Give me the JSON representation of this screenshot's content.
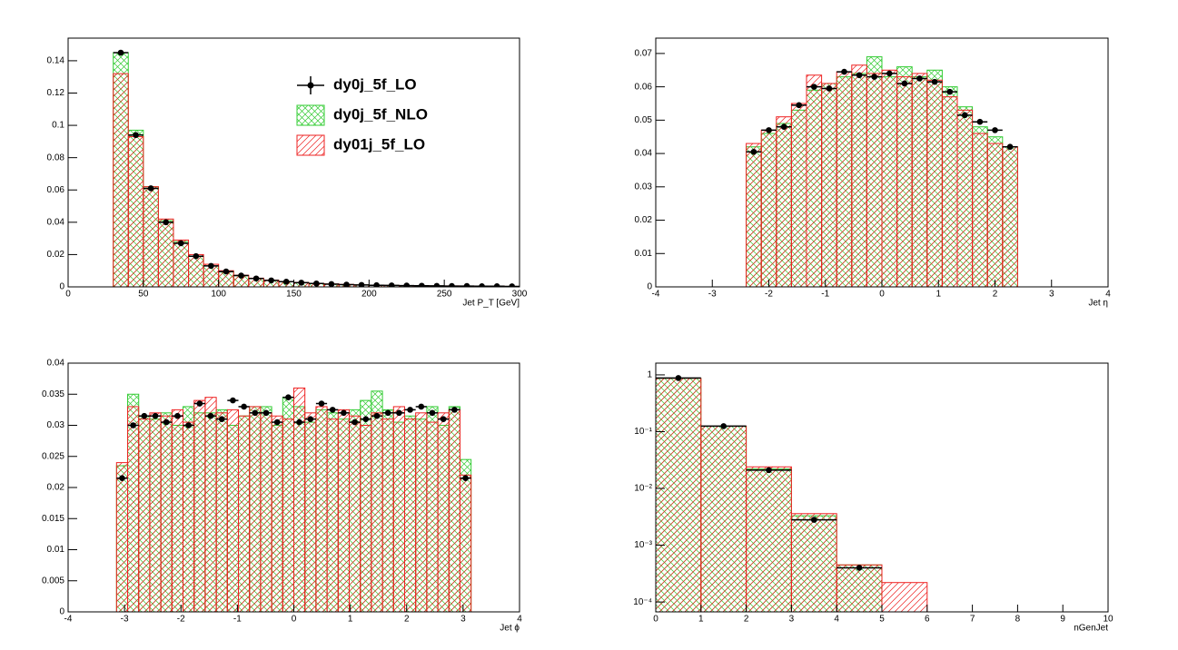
{
  "chart_data": [
    {
      "type": "histogram",
      "xlabel": "Jet P_T [GeV]",
      "legend": "top-right",
      "bins": [
        30,
        40,
        50,
        60,
        70,
        80,
        90,
        100,
        110,
        120,
        130,
        140,
        150,
        160,
        170,
        180,
        190,
        200,
        210,
        220,
        230,
        240,
        250,
        260,
        270,
        280,
        290,
        300
      ],
      "series": [
        {
          "name": "dy0j_5f_NLO",
          "style": "hatch-cross",
          "color": "#33cc33",
          "values": [
            0.145,
            0.097,
            0.062,
            0.041,
            0.028,
            0.019,
            0.013,
            0.0093,
            0.0069,
            0.0052,
            0.0041,
            0.0032,
            0.0026,
            0.0021,
            0.0017,
            0.0014,
            0.0012,
            0.001,
            0.0009,
            0.0008,
            0.0007,
            0.0006,
            0.0005,
            0.0005,
            0.0004,
            0.0004,
            0.0003
          ]
        },
        {
          "name": "dy01j_5f_LO",
          "style": "hatch-diagonal",
          "color": "#ee2222",
          "values": [
            0.132,
            0.093,
            0.062,
            0.042,
            0.029,
            0.02,
            0.014,
            0.01,
            0.0072,
            0.0054,
            0.0042,
            0.0033,
            0.0027,
            0.0022,
            0.0018,
            0.0015,
            0.0012,
            0.0011,
            0.0009,
            0.0008,
            0.0007,
            0.0006,
            0.0006,
            0.0005,
            0.0004,
            0.0004,
            0.0003
          ]
        },
        {
          "name": "dy0j_5f_LO",
          "style": "markers",
          "color": "#000000",
          "values": [
            0.145,
            0.094,
            0.061,
            0.04,
            0.027,
            0.019,
            0.013,
            0.0095,
            0.007,
            0.0052,
            0.004,
            0.0032,
            0.0026,
            0.0021,
            0.0017,
            0.0014,
            0.0012,
            0.001,
            0.0009,
            0.0008,
            0.0007,
            0.0006,
            0.0005,
            0.0005,
            0.0004,
            0.0004,
            0.0003
          ]
        }
      ],
      "xlim": [
        0,
        300
      ],
      "xticks": [
        0,
        50,
        100,
        150,
        200,
        250,
        300
      ],
      "ylim": [
        0,
        0.154
      ],
      "yticks": [
        0,
        0.02,
        0.04,
        0.06,
        0.08,
        0.1,
        0.12,
        0.14
      ],
      "log_y": false
    },
    {
      "type": "histogram",
      "xlabel": "Jet η",
      "bins": [
        -2.4,
        -2.1333,
        -1.8667,
        -1.6,
        -1.3333,
        -1.0667,
        -0.8,
        -0.5333,
        -0.2667,
        0,
        0.2667,
        0.5333,
        0.8,
        1.0667,
        1.3333,
        1.6,
        1.8667,
        2.1333,
        2.4
      ],
      "series": [
        {
          "name": "dy0j_5f_NLO",
          "style": "hatch-cross",
          "color": "#33cc33",
          "values": [
            0.042,
            0.046,
            0.049,
            0.053,
            0.059,
            0.061,
            0.063,
            0.064,
            0.069,
            0.063,
            0.066,
            0.063,
            0.065,
            0.06,
            0.054,
            0.048,
            0.045,
            0.042
          ]
        },
        {
          "name": "dy01j_5f_LO",
          "style": "hatch-diagonal",
          "color": "#ee2222",
          "values": [
            0.043,
            0.047,
            0.051,
            0.055,
            0.0635,
            0.061,
            0.0645,
            0.0665,
            0.064,
            0.065,
            0.063,
            0.064,
            0.062,
            0.057,
            0.053,
            0.046,
            0.043,
            0.042
          ]
        },
        {
          "name": "dy0j_5f_LO",
          "style": "markers",
          "color": "#000000",
          "values": [
            0.0405,
            0.047,
            0.048,
            0.0545,
            0.06,
            0.0595,
            0.0645,
            0.0635,
            0.063,
            0.064,
            0.061,
            0.0625,
            0.0615,
            0.0585,
            0.0515,
            0.0495,
            0.047,
            0.042
          ]
        }
      ],
      "xlim": [
        -4,
        4
      ],
      "xticks": [
        -4,
        -3,
        -2,
        -1,
        0,
        1,
        2,
        3,
        4
      ],
      "ylim": [
        0,
        0.0746
      ],
      "yticks": [
        0,
        0.01,
        0.02,
        0.03,
        0.04,
        0.05,
        0.06,
        0.07
      ],
      "log_y": false
    },
    {
      "type": "histogram",
      "xlabel": "Jet ϕ",
      "bins": [
        -3.1416,
        -2.9452,
        -2.7489,
        -2.5525,
        -2.3562,
        -2.1598,
        -1.9635,
        -1.7671,
        -1.5708,
        -1.3744,
        -1.1781,
        -0.9817,
        -0.7854,
        -0.589,
        -0.3927,
        -0.1963,
        0,
        0.1963,
        0.3927,
        0.589,
        0.7854,
        0.9817,
        1.1781,
        1.3744,
        1.5708,
        1.7671,
        1.9635,
        2.1598,
        2.3562,
        2.5525,
        2.7489,
        2.9452,
        3.1416
      ],
      "series": [
        {
          "name": "dy0j_5f_NLO",
          "style": "hatch-cross",
          "color": "#33cc33",
          "values": [
            0.0235,
            0.035,
            0.0315,
            0.031,
            0.032,
            0.03,
            0.033,
            0.032,
            0.032,
            0.0325,
            0.03,
            0.0315,
            0.033,
            0.033,
            0.03,
            0.0345,
            0.033,
            0.0305,
            0.0325,
            0.032,
            0.031,
            0.0325,
            0.034,
            0.0355,
            0.0325,
            0.0305,
            0.0315,
            0.031,
            0.033,
            0.03,
            0.033,
            0.0245
          ]
        },
        {
          "name": "dy01j_5f_LO",
          "style": "hatch-diagonal",
          "color": "#ee2222",
          "values": [
            0.024,
            0.033,
            0.031,
            0.032,
            0.0315,
            0.0325,
            0.0305,
            0.034,
            0.0345,
            0.032,
            0.0325,
            0.0315,
            0.033,
            0.032,
            0.0315,
            0.031,
            0.036,
            0.032,
            0.033,
            0.031,
            0.0325,
            0.0315,
            0.03,
            0.032,
            0.031,
            0.033,
            0.031,
            0.032,
            0.0305,
            0.032,
            0.0325,
            0.022
          ]
        },
        {
          "name": "dy0j_5f_LO",
          "style": "markers",
          "color": "#000000",
          "values": [
            0.0215,
            0.03,
            0.0315,
            0.0315,
            0.0305,
            0.0315,
            0.03,
            0.0335,
            0.0315,
            0.031,
            0.034,
            0.033,
            0.032,
            0.032,
            0.0305,
            0.0345,
            0.0305,
            0.031,
            0.0335,
            0.0325,
            0.032,
            0.0305,
            0.031,
            0.0315,
            0.032,
            0.032,
            0.0325,
            0.033,
            0.032,
            0.031,
            0.0325,
            0.0215
          ]
        }
      ],
      "xlim": [
        -4,
        4
      ],
      "xticks": [
        -4,
        -3,
        -2,
        -1,
        0,
        1,
        2,
        3,
        4
      ],
      "ylim": [
        0,
        0.04
      ],
      "yticks": [
        0,
        0.005,
        0.01,
        0.015,
        0.02,
        0.025,
        0.03,
        0.035,
        0.04
      ],
      "log_y": false
    },
    {
      "type": "histogram",
      "xlabel": "nGenJet",
      "bins": [
        0,
        1,
        2,
        3,
        4,
        5,
        6
      ],
      "series": [
        {
          "name": "dy0j_5f_NLO",
          "style": "hatch-cross",
          "color": "#33cc33",
          "values": [
            0.87,
            0.125,
            0.022,
            0.0033,
            0.00045,
            null
          ]
        },
        {
          "name": "dy01j_5f_LO",
          "style": "hatch-diagonal",
          "color": "#ee2222",
          "values": [
            0.87,
            0.125,
            0.024,
            0.0036,
            0.00045,
            0.00022
          ]
        },
        {
          "name": "dy0j_5f_LO",
          "style": "markers",
          "color": "#000000",
          "values": [
            0.88,
            0.125,
            0.021,
            0.0028,
            0.0004,
            null
          ]
        }
      ],
      "xlim": [
        0,
        10
      ],
      "xticks": [
        0,
        1,
        2,
        3,
        4,
        5,
        6,
        7,
        8,
        9,
        10
      ],
      "ylim": [
        6.7e-05,
        1.61
      ],
      "log_y": true,
      "yticks": [
        {
          "value": 0.0001,
          "label": "10⁻⁴"
        },
        {
          "value": 0.001,
          "label": "10⁻³"
        },
        {
          "value": 0.01,
          "label": "10⁻²"
        },
        {
          "value": 0.1,
          "label": "10⁻¹"
        },
        1
      ]
    }
  ]
}
